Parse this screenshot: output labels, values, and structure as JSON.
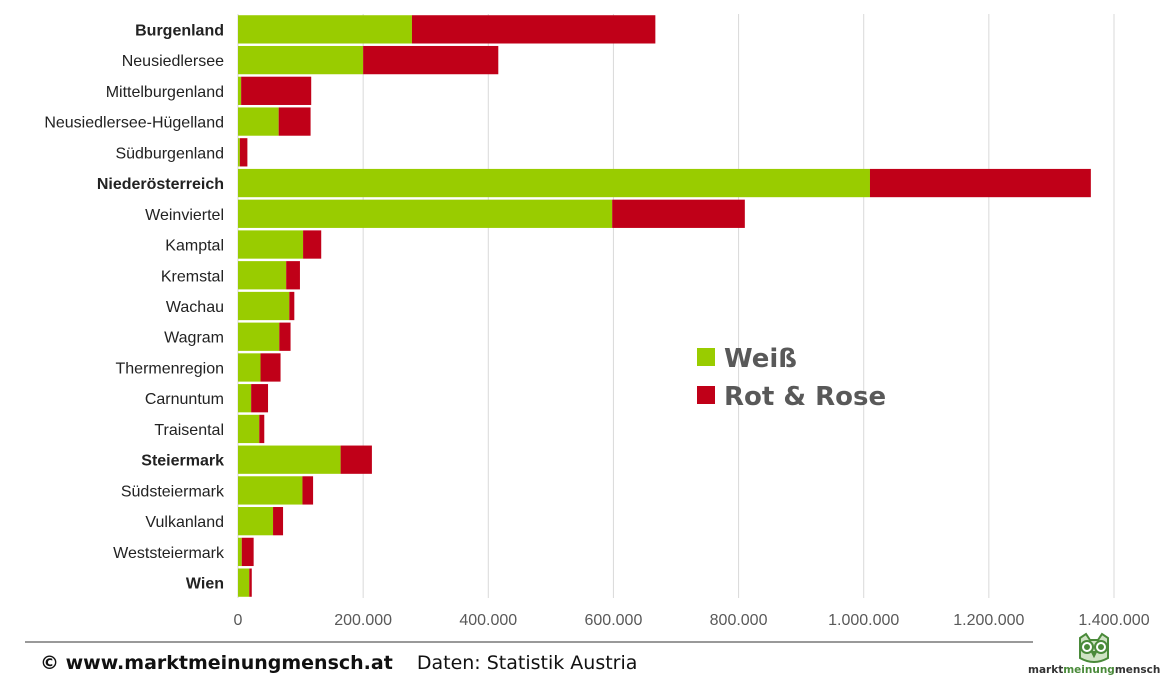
{
  "chart_data": {
    "type": "bar",
    "orientation": "horizontal",
    "stacked": true,
    "categories": [
      "Burgenland",
      "Neusiedlersee",
      "Mittelburgenland",
      "Neusiedlersee-Hügelland",
      "Südburgenland",
      "Niederösterreich",
      "Weinviertel",
      "Kamptal",
      "Kremstal",
      "Wachau",
      "Wagram",
      "Thermenregion",
      "Carnuntum",
      "Traisental",
      "Steiermark",
      "Südsteiermark",
      "Vulkanland",
      "Weststeiermark",
      "Wien"
    ],
    "bold_categories": [
      "Burgenland",
      "Niederösterreich",
      "Steiermark",
      "Wien"
    ],
    "series": [
      {
        "name": "Weiß",
        "color": "#99CC00",
        "values": [
          278000,
          200000,
          5000,
          65000,
          3000,
          1010000,
          598000,
          104000,
          77000,
          82000,
          66000,
          36000,
          21000,
          34000,
          164000,
          103000,
          56000,
          6000,
          18000
        ]
      },
      {
        "name": "Rot & Rose",
        "color": "#C00018",
        "values": [
          389000,
          216000,
          112000,
          51000,
          12000,
          353000,
          212000,
          29000,
          22000,
          8000,
          18000,
          32000,
          27000,
          8000,
          50000,
          17000,
          16000,
          19000,
          4000
        ]
      }
    ],
    "xlim": [
      0,
      1400000
    ],
    "xticks": [
      "0",
      "200.000",
      "400.000",
      "600.000",
      "800.000",
      "1.000.000",
      "1.200.000",
      "1.400.000"
    ],
    "grid": true,
    "legend_position": "center-right"
  },
  "footer": {
    "copyright": "© www.marktmeinungmensch.at",
    "source": "Daten: Statistik Austria"
  },
  "logo": {
    "text_left": "markt",
    "text_mid": "meinung",
    "text_right": "mensch"
  }
}
